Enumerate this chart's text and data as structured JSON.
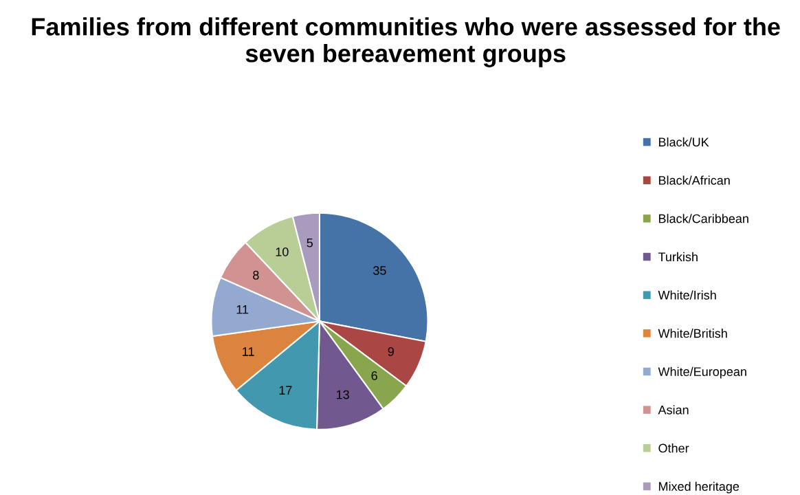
{
  "chart_data": {
    "type": "pie",
    "title": "Families from different communities who were assessed for the seven bereavement groups",
    "categories": [
      "Black/UK",
      "Black/African",
      "Black/Caribbean",
      "Turkish",
      "White/Irish",
      "White/British",
      "White/European",
      "Asian",
      "Other",
      "Mixed heritage"
    ],
    "values": [
      35,
      9,
      6,
      13,
      17,
      11,
      11,
      8,
      10,
      5
    ],
    "colors": [
      "#4572a7",
      "#aa4643",
      "#89a54e",
      "#71588f",
      "#4198af",
      "#db843d",
      "#93a9cf",
      "#d19392",
      "#b9cd96",
      "#a99bbd"
    ],
    "data_labels": true,
    "legend": "right"
  }
}
